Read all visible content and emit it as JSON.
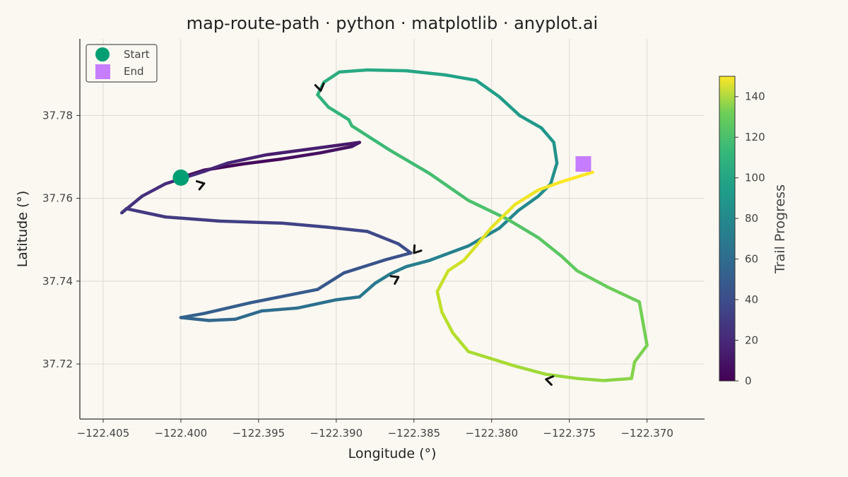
{
  "chart_data": {
    "type": "line",
    "title": "map-route-path · python · matplotlib · anyplot.ai",
    "xlabel": "Longitude (°)",
    "ylabel": "Latitude (°)",
    "xlim": [
      -122.4065,
      -122.3663
    ],
    "ylim": [
      37.7067,
      37.7985
    ],
    "xticks": [
      -122.405,
      -122.4,
      -122.395,
      -122.39,
      -122.385,
      -122.38,
      -122.375,
      -122.37
    ],
    "xtick_labels": [
      "−122.405",
      "−122.400",
      "−122.395",
      "−122.390",
      "−122.385",
      "−122.380",
      "−122.375",
      "−122.370"
    ],
    "yticks": [
      37.72,
      37.74,
      37.76,
      37.78
    ],
    "ytick_labels": [
      "37.72",
      "37.74",
      "37.76",
      "37.78"
    ],
    "grid": true,
    "legend": {
      "placement": "top-left",
      "entries": [
        {
          "label": "Start",
          "marker": "circle",
          "color": "#009e73"
        },
        {
          "label": "End",
          "marker": "square",
          "color": "#c77dff"
        }
      ]
    },
    "colorbar": {
      "label": "Trail Progress",
      "min": 0,
      "max": 150,
      "ticks": [
        0,
        20,
        40,
        60,
        80,
        100,
        120,
        140
      ],
      "colormap": "viridis"
    },
    "series": [
      {
        "x": [
          -122.4,
          -122.3985,
          -122.396,
          -122.3935,
          -122.391,
          -122.389,
          -122.3885,
          -122.3905,
          -122.3945,
          -122.397,
          -122.3985,
          -122.401,
          -122.4025,
          -122.4038,
          -122.4035,
          -122.401,
          -122.3975,
          -122.3935,
          -122.3905,
          -122.388,
          -122.386,
          -122.3852,
          -122.3868,
          -122.3895,
          -122.3912,
          -122.3955,
          -122.3985,
          -122.4,
          -122.3982,
          -122.3965,
          -122.3948,
          -122.3925,
          -122.39,
          -122.3885,
          -122.3875,
          -122.3865,
          -122.3855,
          -122.384,
          -122.3815,
          -122.3795,
          -122.3783,
          -122.377,
          -122.3762,
          -122.3758,
          -122.376,
          -122.3768,
          -122.3782,
          -122.3795,
          -122.381,
          -122.383,
          -122.3855,
          -122.388,
          -122.3898,
          -122.3908,
          -122.3912,
          -122.3905,
          -122.3892,
          -122.389,
          -122.3865,
          -122.384,
          -122.3815,
          -122.379,
          -122.377,
          -122.3755,
          -122.3745,
          -122.3725,
          -122.3705,
          -122.37,
          -122.3708,
          -122.371,
          -122.3728,
          -122.3745,
          -122.3765,
          -122.3785,
          -122.3815,
          -122.3825,
          -122.3832,
          -122.3835,
          -122.3828,
          -122.3818,
          -122.381,
          -122.38,
          -122.3785,
          -122.377,
          -122.3755,
          -122.3735
        ],
        "y": [
          37.765,
          37.7668,
          37.7683,
          37.7695,
          37.771,
          37.7725,
          37.7735,
          37.7725,
          37.7705,
          37.7685,
          37.7665,
          37.7635,
          37.7605,
          37.7565,
          37.7575,
          37.7555,
          37.7545,
          37.754,
          37.753,
          37.752,
          37.749,
          37.7468,
          37.7452,
          37.742,
          37.738,
          37.7348,
          37.7322,
          37.7312,
          37.7305,
          37.7308,
          37.7328,
          37.7335,
          37.7355,
          37.7362,
          37.7395,
          37.7418,
          37.7435,
          37.745,
          37.7485,
          37.7528,
          37.757,
          37.7605,
          37.7635,
          37.7685,
          37.7735,
          37.777,
          37.78,
          37.7845,
          37.7885,
          37.7898,
          37.7908,
          37.791,
          37.7905,
          37.788,
          37.785,
          37.782,
          37.779,
          37.7775,
          37.7715,
          37.766,
          37.7595,
          37.755,
          37.7505,
          37.746,
          37.7425,
          37.7385,
          37.735,
          37.7245,
          37.7205,
          37.7165,
          37.716,
          37.7165,
          37.7175,
          37.7195,
          37.723,
          37.7275,
          37.7325,
          37.7375,
          37.7425,
          37.745,
          37.7485,
          37.753,
          37.7585,
          37.762,
          37.764,
          37.7663
        ]
      }
    ],
    "start": {
      "x": -122.4,
      "y": 37.765
    },
    "end": {
      "x": -122.3741,
      "y": 37.7683
    },
    "direction_arrows": [
      {
        "x": -122.3985,
        "y": 37.7636
      },
      {
        "x": -122.385,
        "y": 37.7468
      },
      {
        "x": -122.386,
        "y": 37.741
      },
      {
        "x": -122.391,
        "y": 37.786
      },
      {
        "x": -122.3765,
        "y": 37.7163
      }
    ]
  }
}
